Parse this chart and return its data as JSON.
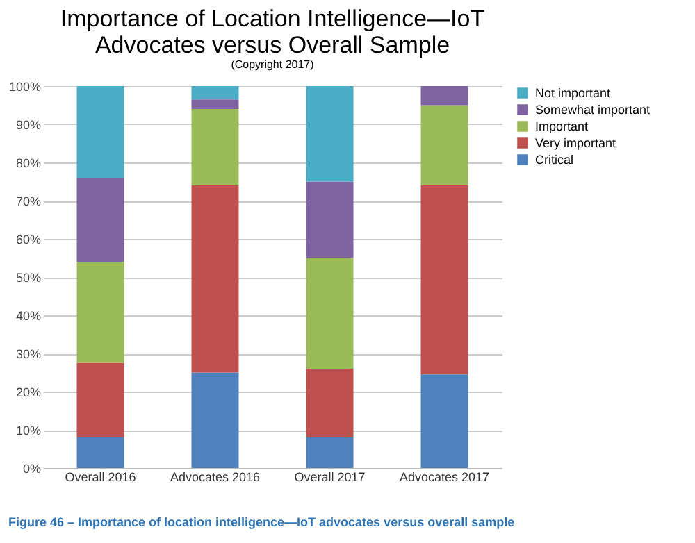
{
  "chart_data": {
    "type": "bar",
    "title": "Importance of Location Intelligence—IoT Advocates versus Overall Sample",
    "subtitle": "(Copyright 2017)",
    "annotations": [
      "Figure 46 – Importance of location intelligence—IoT advocates versus overall sample"
    ],
    "categories": [
      "Overall 2016",
      "Advocates 2016",
      "Overall 2017",
      "Advocates 2017"
    ],
    "stacked": true,
    "series": [
      {
        "name": "Critical",
        "color": "#4f81bd",
        "values": [
          8,
          25,
          8,
          24.5
        ]
      },
      {
        "name": "Very important",
        "color": "#c0504d",
        "values": [
          19.5,
          49,
          18,
          49.5
        ]
      },
      {
        "name": "Important",
        "color": "#9bbb59",
        "values": [
          26.5,
          20,
          29,
          21
        ]
      },
      {
        "name": "Somewhat important",
        "color": "#8064a2",
        "values": [
          22,
          2.5,
          20,
          5
        ]
      },
      {
        "name": "Not important",
        "color": "#4bacc6",
        "values": [
          24,
          3.5,
          25,
          0
        ]
      }
    ],
    "ylim": [
      0,
      100
    ],
    "yticks": [
      {
        "value": 0,
        "label": "0%"
      },
      {
        "value": 10,
        "label": "10%"
      },
      {
        "value": 20,
        "label": "20%"
      },
      {
        "value": 30,
        "label": "30%"
      },
      {
        "value": 40,
        "label": "40%"
      },
      {
        "value": 50,
        "label": "50%"
      },
      {
        "value": 60,
        "label": "60%"
      },
      {
        "value": 70,
        "label": "70%"
      },
      {
        "value": 80,
        "label": "80%"
      },
      {
        "value": 90,
        "label": "90%"
      },
      {
        "value": 100,
        "label": "100%"
      }
    ],
    "grid": "y",
    "legend": "right"
  }
}
